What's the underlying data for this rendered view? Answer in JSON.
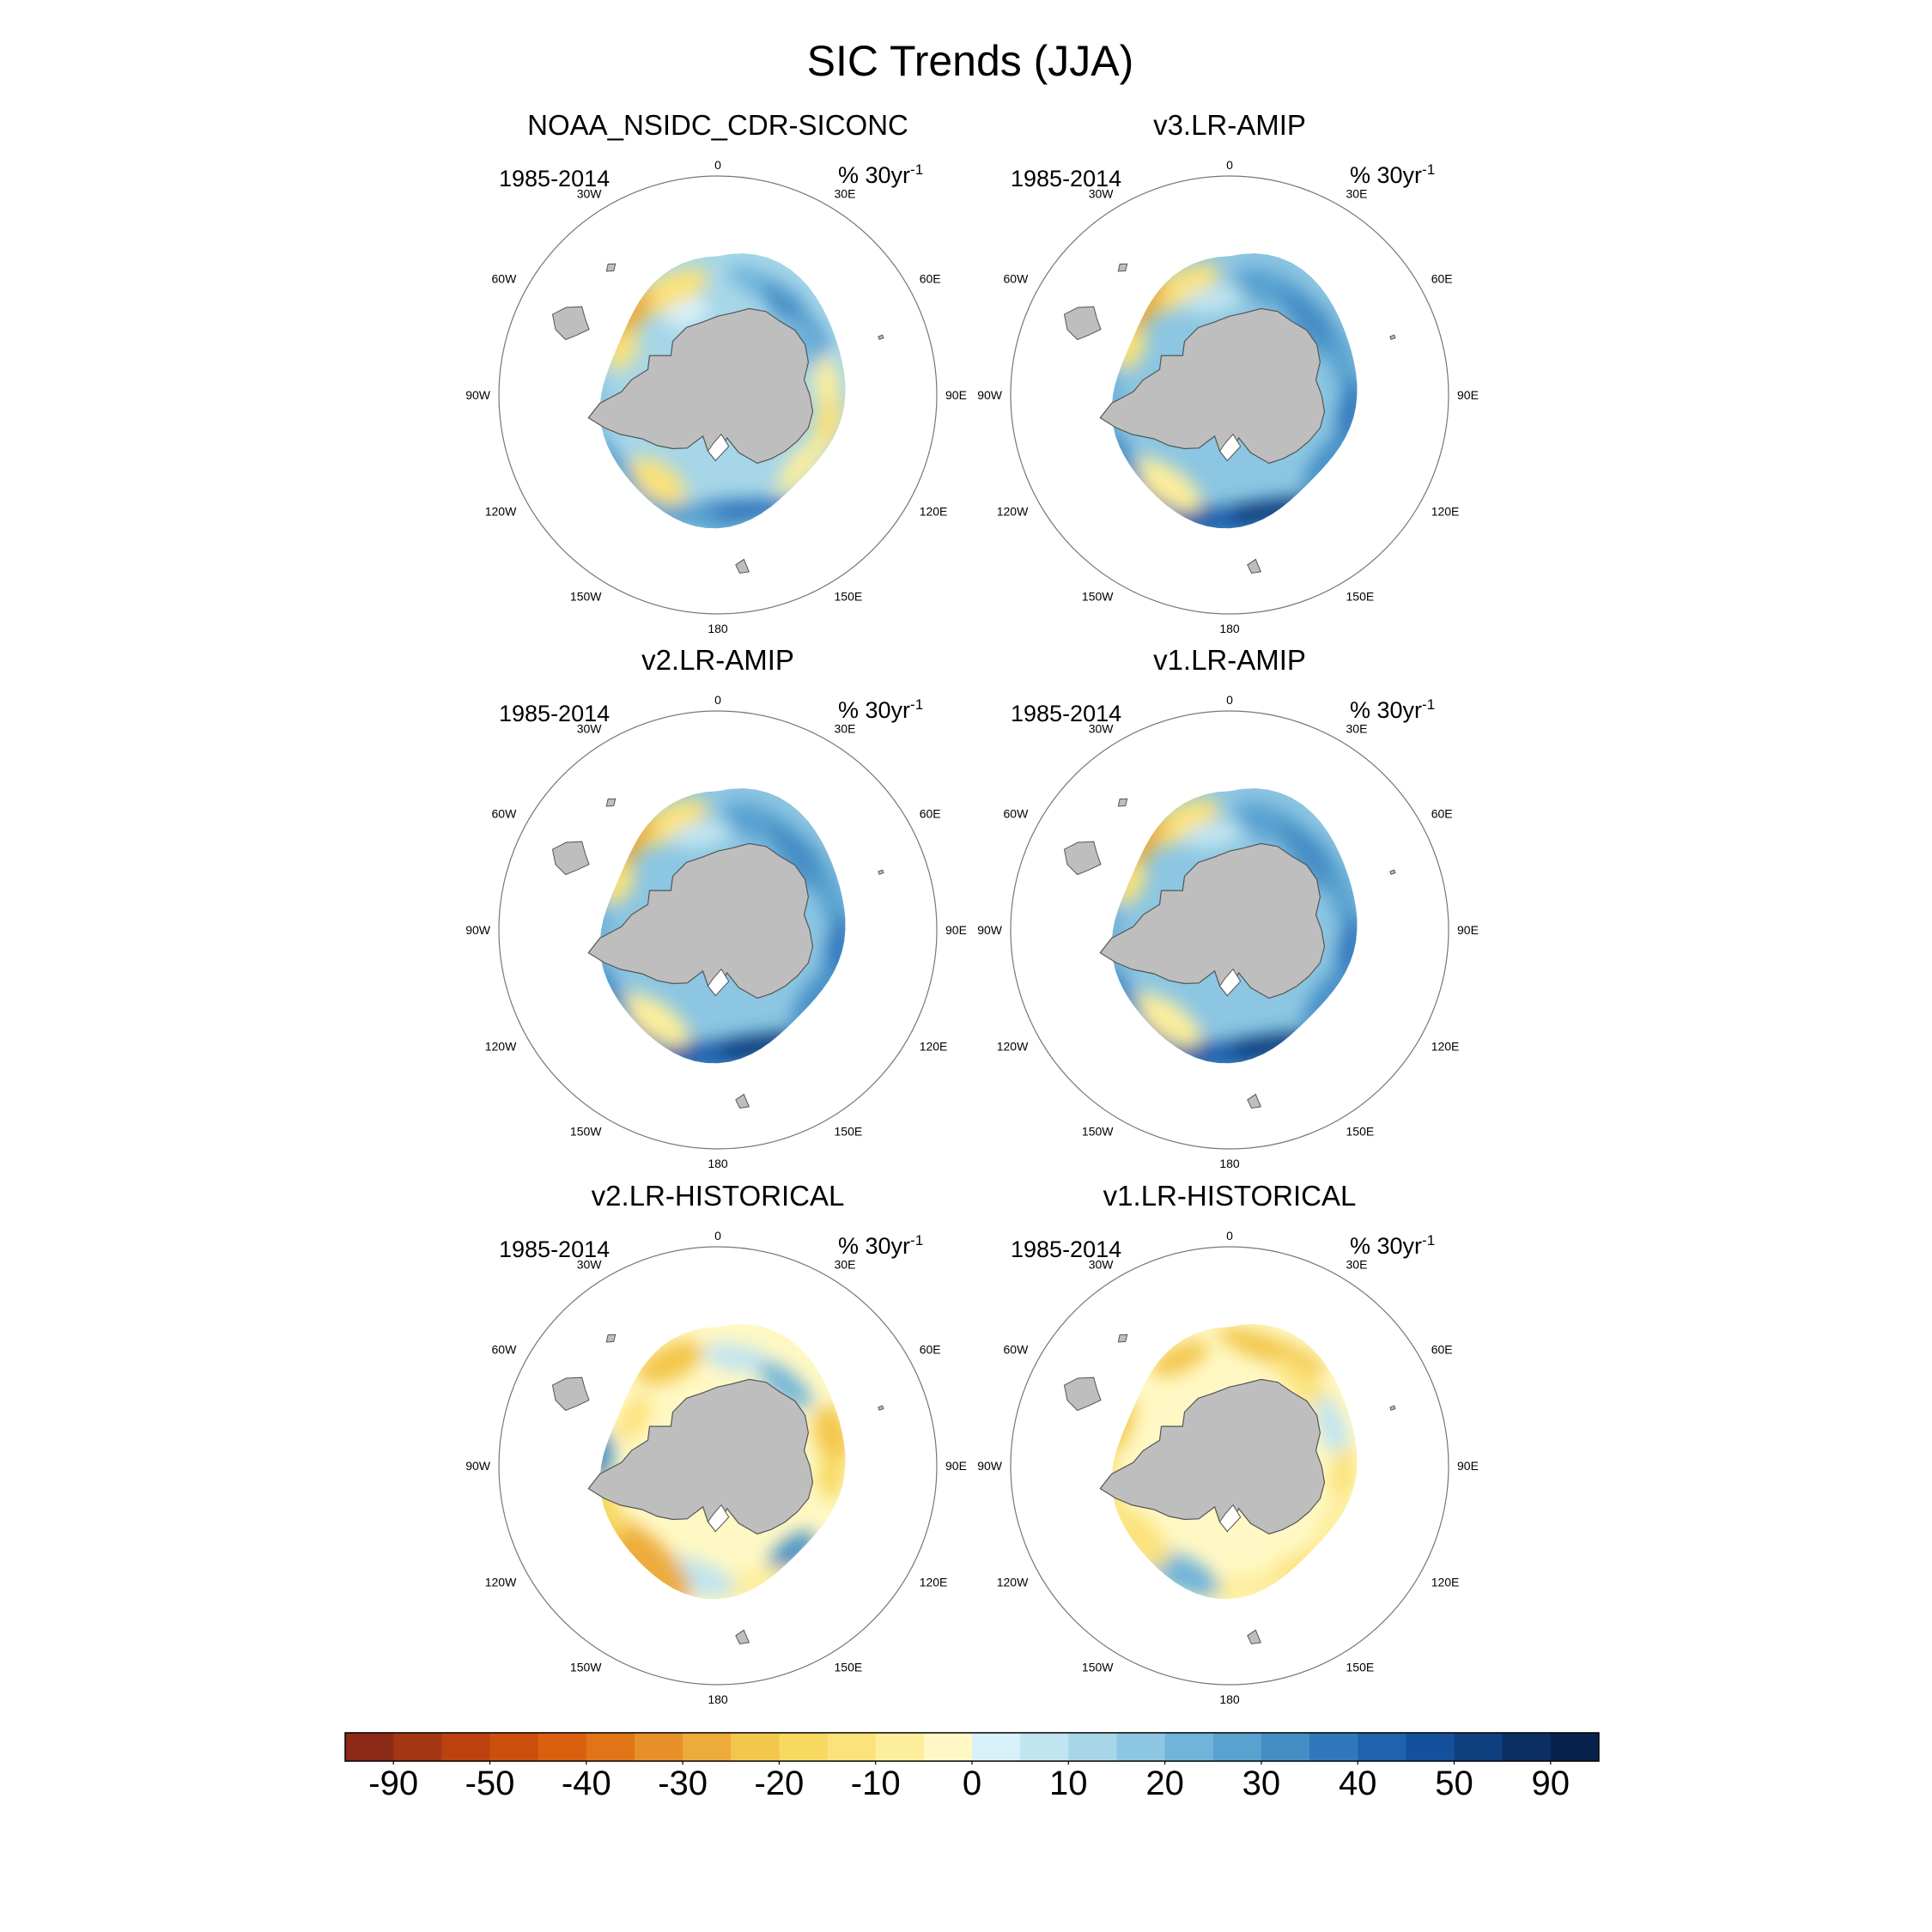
{
  "figure": {
    "title": "SIC Trends (JJA)"
  },
  "panels": [
    {
      "title": "NOAA_NSIDC_CDR-SICONC",
      "period": "1985-2014",
      "units": "% 30yr",
      "units_exp": "-1",
      "pattern": "obs"
    },
    {
      "title": "v3.LR-AMIP",
      "period": "1985-2014",
      "units": "% 30yr",
      "units_exp": "-1",
      "pattern": "amip"
    },
    {
      "title": "v2.LR-AMIP",
      "period": "1985-2014",
      "units": "% 30yr",
      "units_exp": "-1",
      "pattern": "amip"
    },
    {
      "title": "v1.LR-AMIP",
      "period": "1985-2014",
      "units": "% 30yr",
      "units_exp": "-1",
      "pattern": "amip"
    },
    {
      "title": "v2.LR-HISTORICAL",
      "period": "1985-2014",
      "units": "% 30yr",
      "units_exp": "-1",
      "pattern": "hist2"
    },
    {
      "title": "v1.LR-HISTORICAL",
      "period": "1985-2014",
      "units": "% 30yr",
      "units_exp": "-1",
      "pattern": "hist1"
    }
  ],
  "longitude_labels": [
    "0",
    "30E",
    "60E",
    "90E",
    "120E",
    "150E",
    "180",
    "150W",
    "120W",
    "90W",
    "60W",
    "30W"
  ],
  "colorbar": {
    "colors": [
      "#8c2a18",
      "#a43614",
      "#bb420f",
      "#cc500d",
      "#d8600f",
      "#e07418",
      "#e7902a",
      "#edac3a",
      "#f3c64c",
      "#f7d860",
      "#fbe27a",
      "#fdee9c",
      "#fff8c4",
      "#d8f0f8",
      "#c0e4f0",
      "#a6d6e8",
      "#8cc6e2",
      "#70b4da",
      "#58a2d0",
      "#448ec6",
      "#3078bc",
      "#1f62ad",
      "#15509c",
      "#103f80",
      "#0c2f63",
      "#08204c"
    ],
    "tick_labels": [
      "-90",
      "-50",
      "-40",
      "-30",
      "-20",
      "-10",
      "0",
      "10",
      "20",
      "30",
      "40",
      "50",
      "90"
    ]
  },
  "colors": {
    "land": "#bebebe",
    "coast": "#555555",
    "frame": "#777777"
  }
}
